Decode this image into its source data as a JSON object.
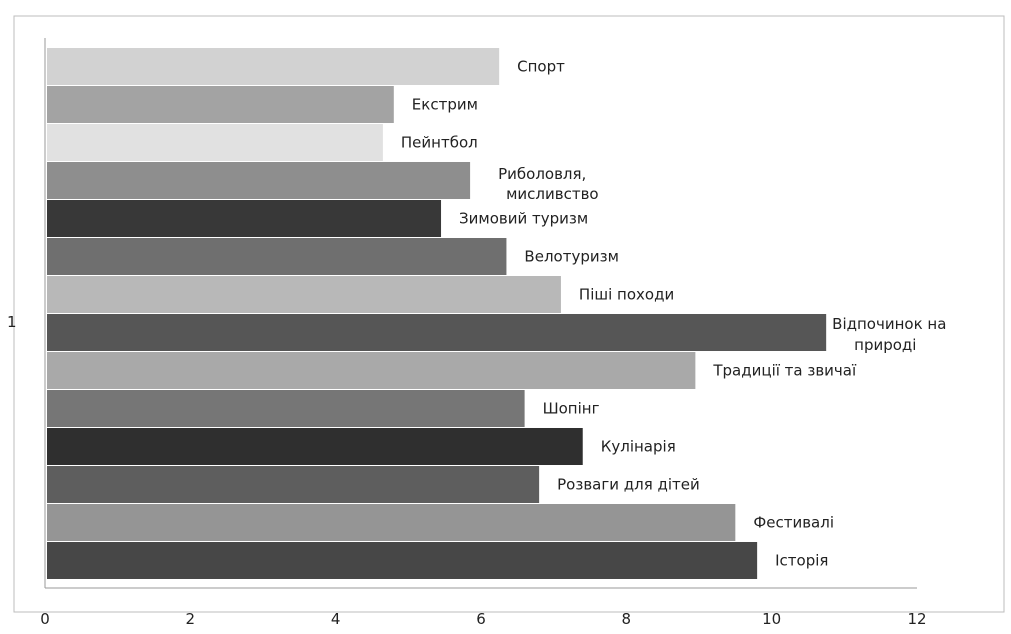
{
  "chart_data": {
    "type": "bar",
    "orientation": "horizontal",
    "title": "",
    "y_category_label": "1",
    "xlim": [
      0,
      12
    ],
    "x_ticks": [
      "0",
      "2",
      "4",
      "6",
      "8",
      "10",
      "12"
    ],
    "grid": false,
    "legend": "none",
    "bars": [
      {
        "label": "Спорт",
        "value": 6.25,
        "color": "#d2d2d2"
      },
      {
        "label": "Екстрим",
        "value": 4.8,
        "color": "#a3a3a3"
      },
      {
        "label": "Пейнтбол",
        "value": 4.65,
        "color": "#e1e1e1"
      },
      {
        "label": "Риболовля, мисливство",
        "value": 5.85,
        "color": "#8e8e8e"
      },
      {
        "label": "Зимовий туризм",
        "value": 5.45,
        "color": "#383838"
      },
      {
        "label": "Велотуризм",
        "value": 6.35,
        "color": "#6f6f6f"
      },
      {
        "label": "Піші походи",
        "value": 7.1,
        "color": "#b8b8b8"
      },
      {
        "label": "Відпочинок на природі",
        "value": 10.75,
        "color": "#565656"
      },
      {
        "label": "Традиції та звичаї",
        "value": 8.95,
        "color": "#a9a9a9"
      },
      {
        "label": "Шопінг",
        "value": 6.6,
        "color": "#767676"
      },
      {
        "label": "Кулінарія",
        "value": 7.4,
        "color": "#2f2f2f"
      },
      {
        "label": "Розваги для дітей",
        "value": 6.8,
        "color": "#5e5e5e"
      },
      {
        "label": "Фестивалі",
        "value": 9.5,
        "color": "#959595"
      },
      {
        "label": "Історія",
        "value": 9.8,
        "color": "#474747"
      }
    ]
  }
}
